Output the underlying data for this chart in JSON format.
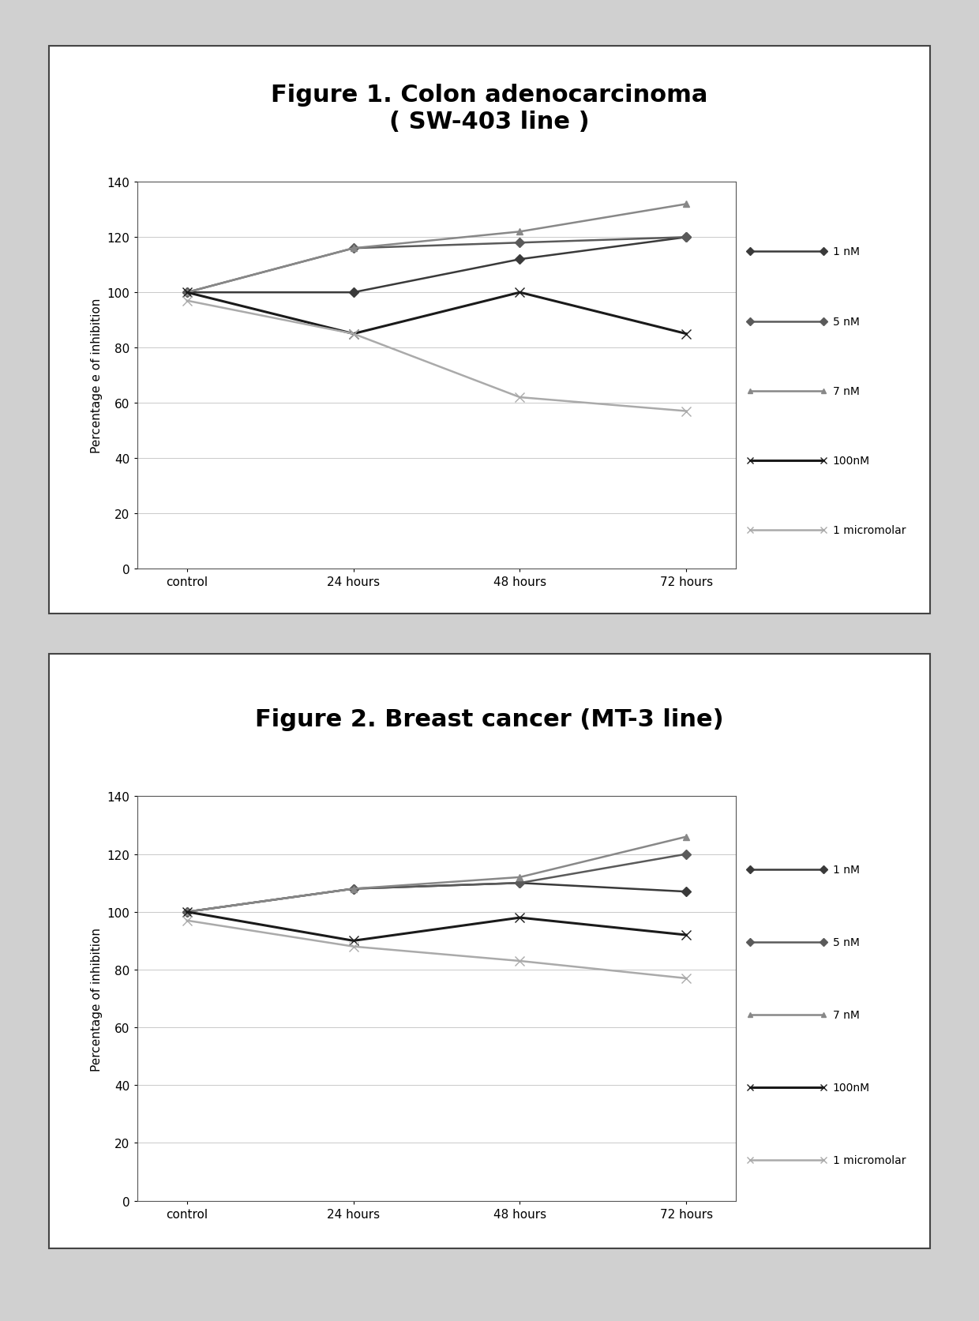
{
  "fig1": {
    "title": "Figure 1. Colon adenocarcinoma\n( SW-403 line )",
    "ylabel": "Percentage e of inhibition",
    "x_labels": [
      "control",
      "24 hours",
      "48 hours",
      "72 hours"
    ],
    "ylim": [
      0,
      140
    ],
    "yticks": [
      0,
      20,
      40,
      60,
      80,
      100,
      120,
      140
    ],
    "series": [
      {
        "label": "1 nM",
        "values": [
          100,
          100,
          112,
          120
        ],
        "color": "#3a3a3a",
        "marker": "D",
        "ms": 6,
        "lw": 1.8
      },
      {
        "label": "5 nM",
        "values": [
          100,
          116,
          118,
          120
        ],
        "color": "#5a5a5a",
        "marker": "D",
        "ms": 6,
        "lw": 1.8
      },
      {
        "label": "7 nM",
        "values": [
          100,
          116,
          122,
          132
        ],
        "color": "#888888",
        "marker": "^",
        "ms": 6,
        "lw": 1.8
      },
      {
        "label": "100nM",
        "values": [
          100,
          85,
          100,
          85
        ],
        "color": "#1a1a1a",
        "marker": "x",
        "ms": 8,
        "lw": 2.2
      },
      {
        "label": "1 micromolar",
        "values": [
          97,
          85,
          62,
          57
        ],
        "color": "#aaaaaa",
        "marker": "x",
        "ms": 8,
        "lw": 1.8
      }
    ]
  },
  "fig2": {
    "title": "Figure 2. Breast cancer (MT-3 line)",
    "ylabel": "Percentage of inhibition",
    "x_labels": [
      "control",
      "24 hours",
      "48 hours",
      "72 hours"
    ],
    "ylim": [
      0,
      140
    ],
    "yticks": [
      0,
      20,
      40,
      60,
      80,
      100,
      120,
      140
    ],
    "series": [
      {
        "label": "1 nM",
        "values": [
          100,
          108,
          110,
          107
        ],
        "color": "#3a3a3a",
        "marker": "D",
        "ms": 6,
        "lw": 1.8
      },
      {
        "label": "5 nM",
        "values": [
          100,
          108,
          110,
          120
        ],
        "color": "#5a5a5a",
        "marker": "D",
        "ms": 6,
        "lw": 1.8
      },
      {
        "label": "7 nM",
        "values": [
          100,
          108,
          112,
          126
        ],
        "color": "#888888",
        "marker": "^",
        "ms": 6,
        "lw": 1.8
      },
      {
        "label": "100nM",
        "values": [
          100,
          90,
          98,
          92
        ],
        "color": "#1a1a1a",
        "marker": "x",
        "ms": 8,
        "lw": 2.2
      },
      {
        "label": "1 micromolar",
        "values": [
          97,
          88,
          83,
          77
        ],
        "color": "#aaaaaa",
        "marker": "x",
        "ms": 8,
        "lw": 1.8
      }
    ]
  },
  "page_bg": "#d0d0d0",
  "chart_bg": "#ffffff",
  "grid_color": "#bbbbbb",
  "legend_fontsize": 10,
  "title_fontsize": 22,
  "axis_fontsize": 11,
  "tick_fontsize": 11
}
